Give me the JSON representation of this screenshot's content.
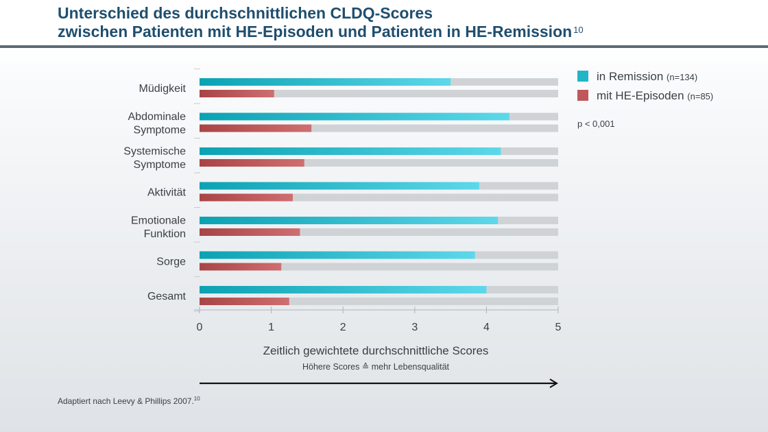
{
  "header": {
    "title_line1": "Unterschied des durchschnittlichen CLDQ-Scores",
    "title_line2": "zwischen Patienten mit HE-Episoden und Patienten in HE-Remission",
    "title_ref": "10"
  },
  "legend": [
    {
      "label": "in Remission",
      "note": "(n=134)",
      "color": "#22b5c8"
    },
    {
      "label": "mit HE-Episoden",
      "note": "(n=85)",
      "color": "#c0575b"
    }
  ],
  "p_value": "p < 0,001",
  "source_note": "Adaptiert nach Leevy & Phillips 2007.",
  "source_ref": "10",
  "chart_data": {
    "type": "bar",
    "orientation": "horizontal",
    "categories": [
      [
        "Müdigkeit"
      ],
      [
        "Abdominale",
        "Symptome"
      ],
      [
        "Systemische",
        "Symptome"
      ],
      [
        "Aktivität"
      ],
      [
        "Emotionale",
        "Funktion"
      ],
      [
        "Sorge"
      ],
      [
        "Gesamt"
      ]
    ],
    "series": [
      {
        "name": "in Remission (n=134)",
        "color_from": "#0ba2b3",
        "color_to": "#5dd8ea",
        "values": [
          3.5,
          4.32,
          4.2,
          3.9,
          4.16,
          3.84,
          4.0
        ]
      },
      {
        "name": "mit HE-Episoden (n=85)",
        "color_from": "#a84446",
        "color_to": "#cf6e70",
        "values": [
          1.04,
          1.56,
          1.46,
          1.3,
          1.4,
          1.14,
          1.25
        ]
      }
    ],
    "xlim": [
      0,
      5
    ],
    "x_ticks": [
      0,
      1,
      2,
      3,
      4,
      5
    ],
    "xlabel": "Zeitlich gewichtete durchschnittliche Scores",
    "xlabel_sub": "Höhere Scores ≙ mehr Lebensqualität",
    "track_color": "#d0d3d6",
    "grid": false
  }
}
